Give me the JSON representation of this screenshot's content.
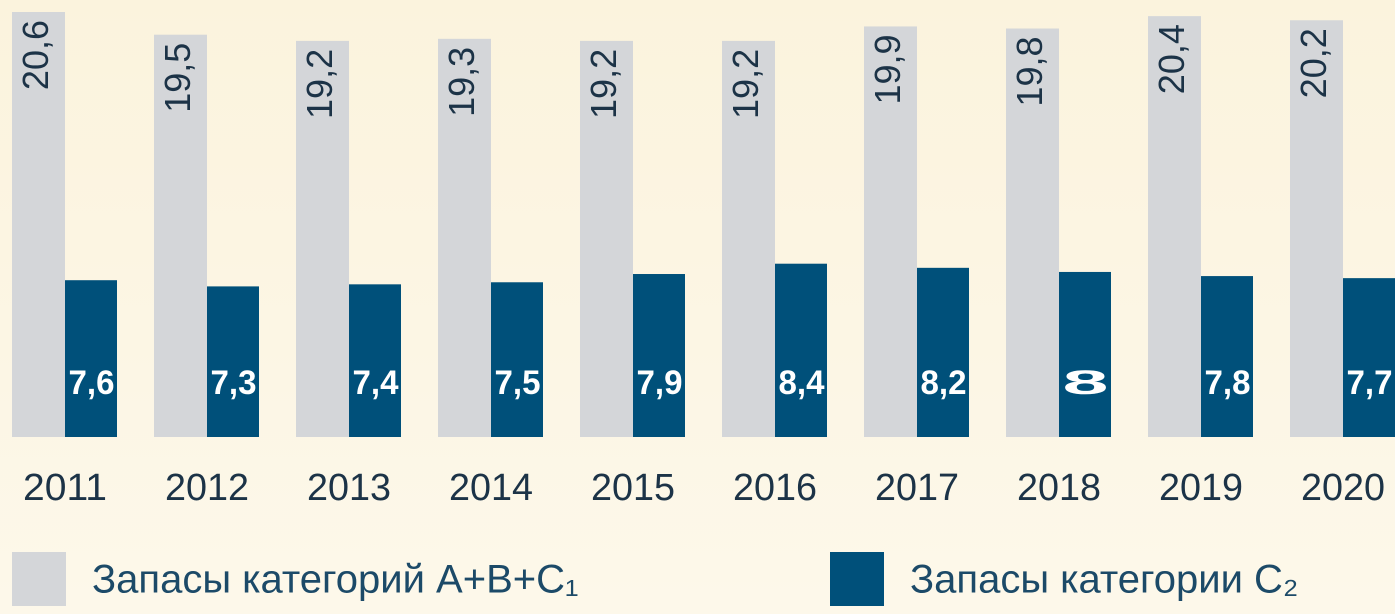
{
  "chart_data": {
    "type": "bar",
    "categories": [
      "2011",
      "2012",
      "2013",
      "2014",
      "2015",
      "2016",
      "2017",
      "2018",
      "2019",
      "2020"
    ],
    "series": [
      {
        "name": "Запасы категорий A+B+C₁",
        "color": "#d4d6d9",
        "values": [
          20.6,
          19.5,
          19.2,
          19.3,
          19.2,
          19.2,
          19.9,
          19.8,
          20.4,
          20.2
        ],
        "value_labels": [
          "20,6",
          "19,5",
          "19,2",
          "19,3",
          "19,2",
          "19,2",
          "19,9",
          "19,8",
          "20,4",
          "20,2"
        ]
      },
      {
        "name": "Запасы категории C₂",
        "color": "#00507a",
        "values": [
          7.6,
          7.3,
          7.4,
          7.5,
          7.9,
          8.4,
          8.2,
          8,
          7.8,
          7.7
        ],
        "value_labels": [
          "7,6",
          "7,3",
          "7,4",
          "7,5",
          "7,9",
          "8,4",
          "8,2",
          "8",
          "7,8",
          "7,7"
        ]
      }
    ]
  }
}
